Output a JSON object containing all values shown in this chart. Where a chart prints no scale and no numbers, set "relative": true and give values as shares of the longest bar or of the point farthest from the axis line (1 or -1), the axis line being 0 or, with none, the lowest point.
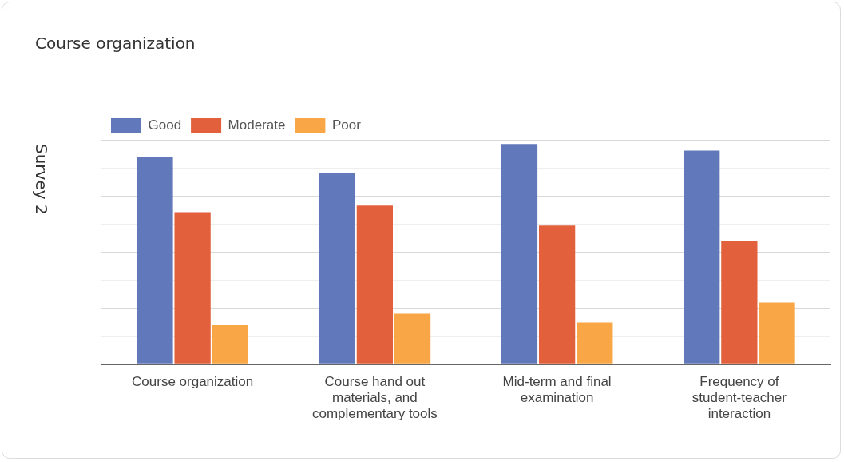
{
  "chart_data": {
    "type": "bar",
    "title": "Course organization",
    "ylabel": "Survey 2",
    "categories": [
      "Course organization",
      "Course hand out materials, and complementary tools",
      "Mid-term and final examination",
      "Frequency of student-teacher interaction"
    ],
    "series": [
      {
        "name": "Good",
        "color": "#6178bb",
        "values": [
          0.94,
          0.87,
          1,
          0.97
        ]
      },
      {
        "name": "Moderate",
        "color": "#e2613c",
        "values": [
          0.69,
          0.72,
          0.63,
          0.56
        ]
      },
      {
        "name": "Poor",
        "color": "#f9a647",
        "values": [
          0.18,
          0.23,
          0.19,
          0.28
        ]
      }
    ],
    "relative": true,
    "grid": "y",
    "legend": "top left"
  }
}
